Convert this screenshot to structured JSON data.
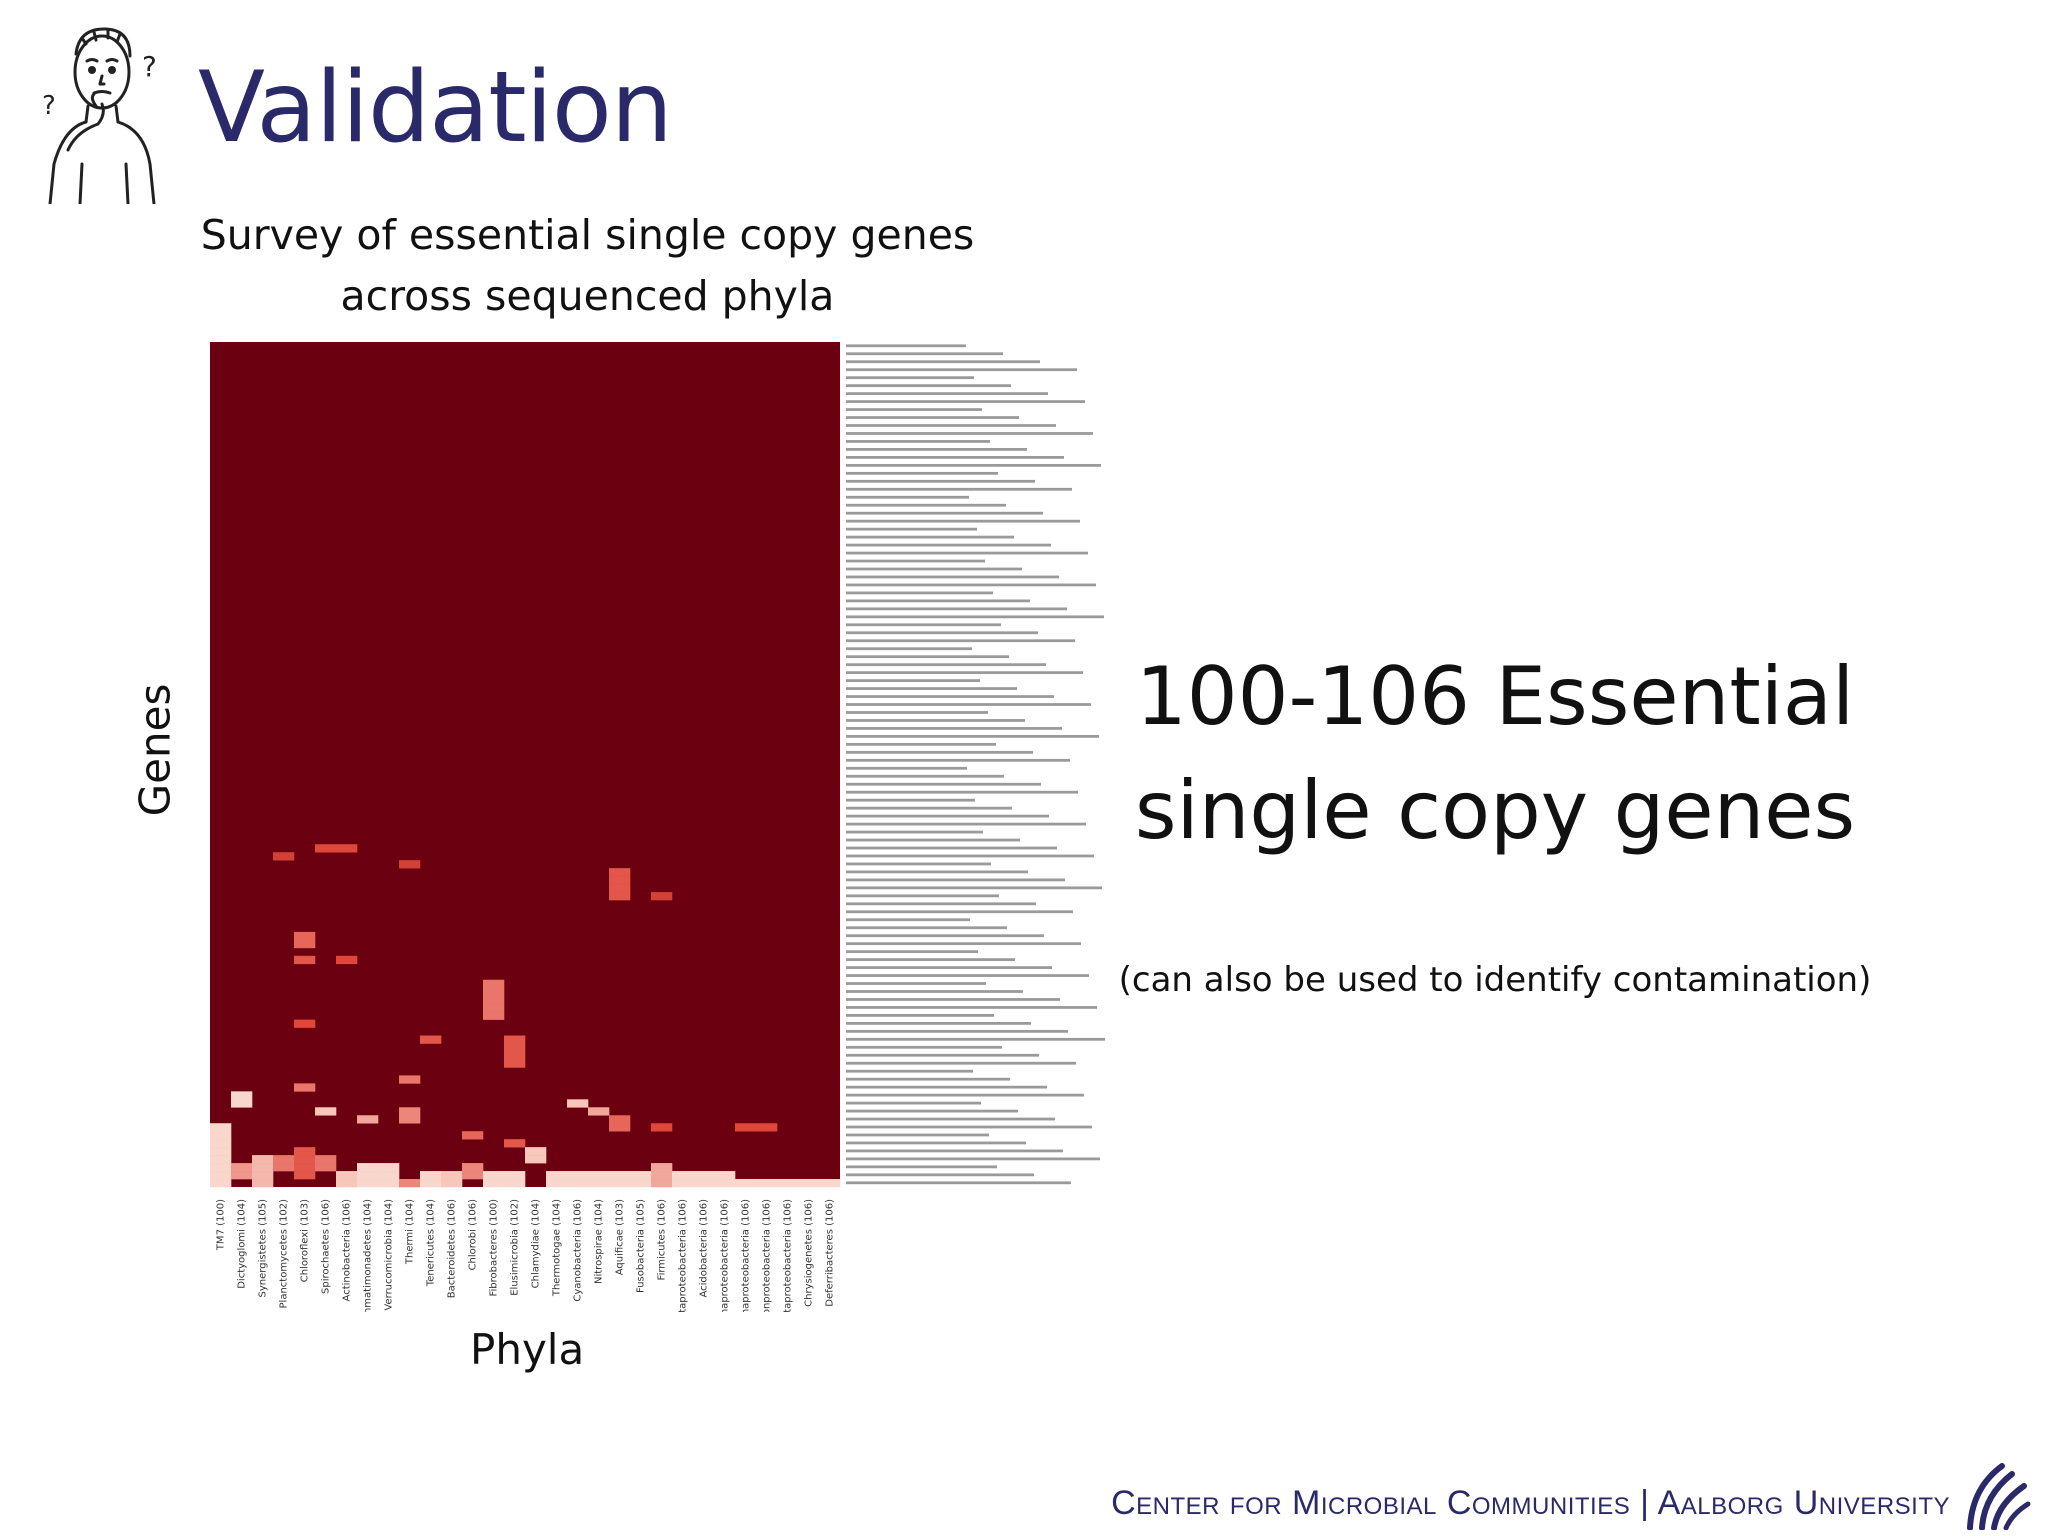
{
  "slide": {
    "title": "Validation",
    "subtitle_line1": "Survey of essential single copy genes",
    "subtitle_line2": "across sequenced phyla",
    "y_axis_label": "Genes",
    "x_axis_label": "Phyla",
    "callout_line1": "100-106 Essential",
    "callout_line2": "single copy genes",
    "note": "(can also be used to identify contamination)",
    "footer_left": "Center for Microbial Communities",
    "footer_sep": "|",
    "footer_right": "Aalborg University"
  },
  "colors": {
    "title": "#2a2a6a",
    "heat_high": "#6b0010",
    "heat_mid": "#e0463a",
    "heat_low": "#fde7dc",
    "footer": "#2a2a6a"
  },
  "icons": {
    "figure": "thinking-person-icon",
    "logo": "aalborg-university-logo"
  },
  "chart_data": {
    "type": "heatmap",
    "xlabel": "Phyla",
    "ylabel": "Genes",
    "phyla": [
      "TM7 (100)",
      "Dictyoglomi (104)",
      "Synergistetes (105)",
      "Planctomycetes (102)",
      "Chloroflexi (103)",
      "Spirochaetes (106)",
      "Actinobacteria (106)",
      "Gemmatimonadetes (104)",
      "Verrucomicrobia (104)",
      "Thermi (104)",
      "Tenericutes (104)",
      "Bacteroidetes (106)",
      "Chlorobi (106)",
      "Fibrobacteres (100)",
      "Elusimicrobia (102)",
      "Chlamydiae (104)",
      "Thermotogae (104)",
      "Cyanobacteria (106)",
      "Nitrospirae (104)",
      "Aquificae (103)",
      "Fusobacteria (105)",
      "Firmicutes (106)",
      "Deltaproteobacteria (106)",
      "Acidobacteria (106)",
      "Gammaproteobacteria (106)",
      "Alphaproteobacteria (106)",
      "Epsilonproteobacteria (106)",
      "Betaproteobacteria (106)",
      "Chrysiogenetes (106)",
      "Deferribacteres (106)"
    ],
    "gene_count": 106,
    "base_level": 1.0,
    "deviations": [
      {
        "phylum": 3,
        "genes": [
          64
        ],
        "level": 0.55
      },
      {
        "phylum": 5,
        "genes": [
          63
        ],
        "level": 0.5
      },
      {
        "phylum": 6,
        "genes": [
          63
        ],
        "level": 0.5
      },
      {
        "phylum": 4,
        "genes": [
          74,
          75
        ],
        "level": 0.4
      },
      {
        "phylum": 4,
        "genes": [
          77
        ],
        "level": 0.45
      },
      {
        "phylum": 6,
        "genes": [
          77
        ],
        "level": 0.5
      },
      {
        "phylum": 9,
        "genes": [
          65
        ],
        "level": 0.55
      },
      {
        "phylum": 13,
        "genes": [
          80,
          81,
          82,
          83,
          84
        ],
        "level": 0.35
      },
      {
        "phylum": 14,
        "genes": [
          87,
          88,
          89,
          90
        ],
        "level": 0.45
      },
      {
        "phylum": 19,
        "genes": [
          66,
          67,
          68,
          69
        ],
        "level": 0.45
      },
      {
        "phylum": 21,
        "genes": [
          69
        ],
        "level": 0.55
      },
      {
        "phylum": 4,
        "genes": [
          85
        ],
        "level": 0.5
      },
      {
        "phylum": 10,
        "genes": [
          87
        ],
        "level": 0.45
      },
      {
        "phylum": 9,
        "genes": [
          92
        ],
        "level": 0.35
      },
      {
        "phylum": 1,
        "genes": [
          94,
          95
        ],
        "level": 0.05
      },
      {
        "phylum": 4,
        "genes": [
          93
        ],
        "level": 0.35
      },
      {
        "phylum": 5,
        "genes": [
          96
        ],
        "level": 0.1
      },
      {
        "phylum": 7,
        "genes": [
          97
        ],
        "level": 0.2
      },
      {
        "phylum": 9,
        "genes": [
          96,
          97
        ],
        "level": 0.3
      },
      {
        "phylum": 17,
        "genes": [
          95
        ],
        "level": 0.1
      },
      {
        "phylum": 18,
        "genes": [
          96
        ],
        "level": 0.2
      },
      {
        "phylum": 19,
        "genes": [
          97,
          98
        ],
        "level": 0.4
      },
      {
        "phylum": 21,
        "genes": [
          98
        ],
        "level": 0.5
      },
      {
        "phylum": 25,
        "genes": [
          98
        ],
        "level": 0.5
      },
      {
        "phylum": 26,
        "genes": [
          98
        ],
        "level": 0.5
      },
      {
        "phylum": 12,
        "genes": [
          99
        ],
        "level": 0.4
      },
      {
        "phylum": 14,
        "genes": [
          100
        ],
        "level": 0.45
      },
      {
        "phylum": 15,
        "genes": [
          101,
          102
        ],
        "level": 0.1
      },
      {
        "phylum": 0,
        "genes": [
          98,
          99,
          100,
          101,
          102,
          103,
          104,
          105
        ],
        "level": 0.05
      },
      {
        "phylum": 1,
        "genes": [
          103,
          104
        ],
        "level": 0.25
      },
      {
        "phylum": 2,
        "genes": [
          102,
          103,
          104,
          105
        ],
        "level": 0.15
      },
      {
        "phylum": 3,
        "genes": [
          102,
          103
        ],
        "level": 0.35
      },
      {
        "phylum": 4,
        "genes": [
          101,
          102,
          103,
          104
        ],
        "level": 0.45
      },
      {
        "phylum": 5,
        "genes": [
          102,
          103
        ],
        "level": 0.35
      },
      {
        "phylum": 6,
        "genes": [
          104,
          105
        ],
        "level": 0.1
      },
      {
        "phylum": 7,
        "genes": [
          103,
          104,
          105
        ],
        "level": 0.05
      },
      {
        "phylum": 8,
        "genes": [
          103,
          104,
          105
        ],
        "level": 0.05
      },
      {
        "phylum": 9,
        "genes": [
          105
        ],
        "level": 0.3
      },
      {
        "phylum": 10,
        "genes": [
          104,
          105
        ],
        "level": 0.05
      },
      {
        "phylum": 11,
        "genes": [
          104,
          105
        ],
        "level": 0.1
      },
      {
        "phylum": 12,
        "genes": [
          103,
          104
        ],
        "level": 0.3
      },
      {
        "phylum": 13,
        "genes": [
          104,
          105
        ],
        "level": 0.05
      },
      {
        "phylum": 14,
        "genes": [
          104,
          105
        ],
        "level": 0.05
      },
      {
        "phylum": 16,
        "genes": [
          104,
          105
        ],
        "level": 0.05
      },
      {
        "phylum": 17,
        "genes": [
          104,
          105
        ],
        "level": 0.05
      },
      {
        "phylum": 18,
        "genes": [
          104,
          105
        ],
        "level": 0.05
      },
      {
        "phylum": 19,
        "genes": [
          104,
          105
        ],
        "level": 0.05
      },
      {
        "phylum": 20,
        "genes": [
          104,
          105
        ],
        "level": 0.05
      },
      {
        "phylum": 21,
        "genes": [
          103,
          104,
          105
        ],
        "level": 0.2
      },
      {
        "phylum": 22,
        "genes": [
          104,
          105
        ],
        "level": 0.05
      },
      {
        "phylum": 23,
        "genes": [
          104,
          105
        ],
        "level": 0.05
      },
      {
        "phylum": 24,
        "genes": [
          104,
          105
        ],
        "level": 0.05
      },
      {
        "phylum": 25,
        "genes": [
          105
        ],
        "level": 0.05
      },
      {
        "phylum": 26,
        "genes": [
          105
        ],
        "level": 0.05
      },
      {
        "phylum": 27,
        "genes": [
          105
        ],
        "level": 0.05
      },
      {
        "phylum": 28,
        "genes": [
          105
        ],
        "level": 0.05
      },
      {
        "phylum": 29,
        "genes": [
          105
        ],
        "level": 0.05
      }
    ]
  }
}
